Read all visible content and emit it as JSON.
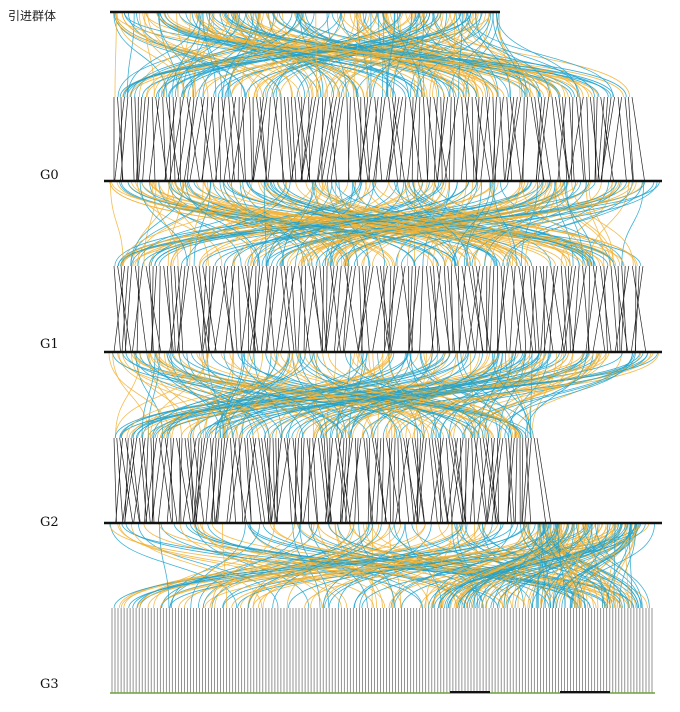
{
  "labels": {
    "founder": "引进群体",
    "g0": "G0",
    "g1": "G1",
    "g2": "G2",
    "g3": "G3"
  },
  "colors": {
    "line_a": "#f2b134",
    "line_b": "#1fa3cf",
    "drop": "#222222",
    "g3_drop": "#666666",
    "g3_base": "#6aa33a",
    "background": "#ffffff"
  }
}
